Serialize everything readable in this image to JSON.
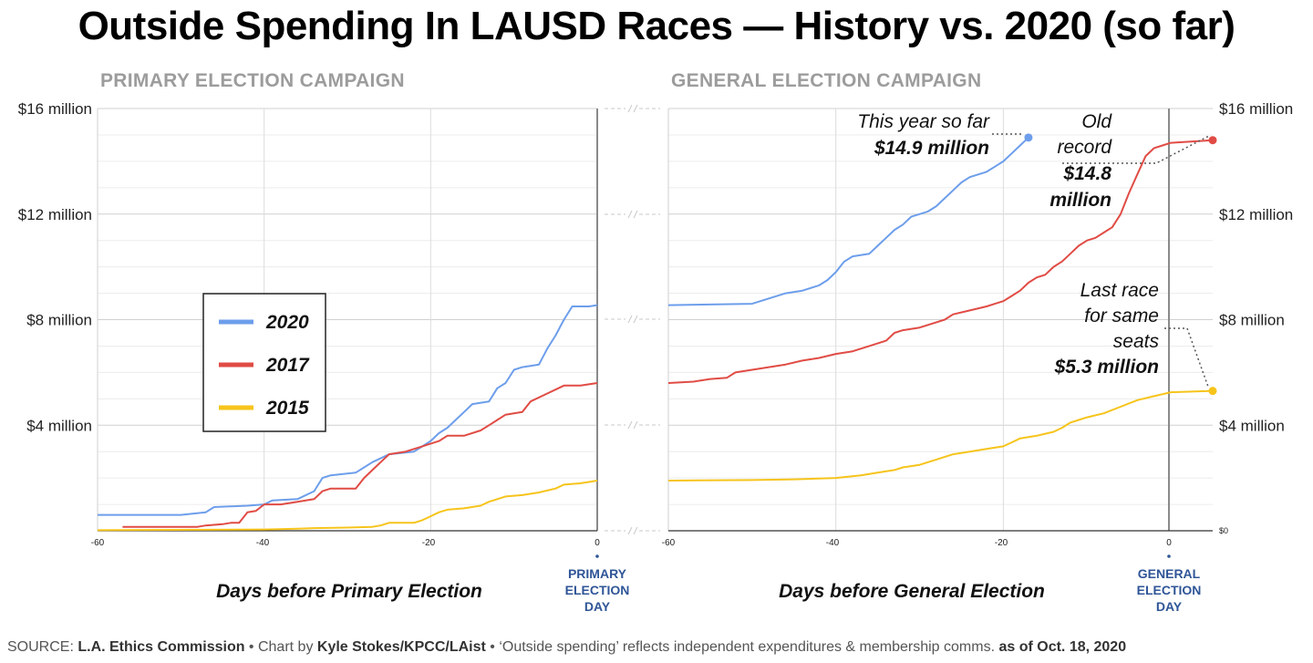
{
  "title": "Outside Spending In LAUSD Races — History vs. 2020 (so far)",
  "colors": {
    "2020": "#6d9eeb",
    "2017": "#e04c45",
    "2015": "#f6c41b",
    "accent_blue": "#2f5597"
  },
  "legend": [
    {
      "name": "2020",
      "color": "#6d9eeb"
    },
    {
      "name": "2017",
      "color": "#e04c45"
    },
    {
      "name": "2015",
      "color": "#f6c41b"
    }
  ],
  "chart_data": [
    {
      "type": "line",
      "title": "PRIMARY ELECTION CAMPAIGN",
      "xlabel": "Days before Primary Election",
      "ylabel": "",
      "xlim": [
        -60,
        0
      ],
      "ylim": [
        0,
        16
      ],
      "x_ticks": [
        "-60",
        "-40",
        "-20",
        "0"
      ],
      "y_ticks": [
        "$16 million",
        "$12 million",
        "$8 million",
        "$4 million"
      ],
      "election_day_label": [
        "PRIMARY",
        "ELECTION",
        "DAY"
      ],
      "series": [
        {
          "name": "2020",
          "color": "#6d9eeb",
          "points": [
            [
              -60,
              0.6
            ],
            [
              -50,
              0.6
            ],
            [
              -47,
              0.7
            ],
            [
              -46,
              0.9
            ],
            [
              -42,
              0.95
            ],
            [
              -40,
              1.0
            ],
            [
              -39,
              1.15
            ],
            [
              -36,
              1.2
            ],
            [
              -34,
              1.5
            ],
            [
              -33,
              2.0
            ],
            [
              -32,
              2.1
            ],
            [
              -29,
              2.2
            ],
            [
              -27,
              2.6
            ],
            [
              -25,
              2.9
            ],
            [
              -22,
              3.0
            ],
            [
              -20,
              3.4
            ],
            [
              -19,
              3.7
            ],
            [
              -18,
              3.9
            ],
            [
              -16,
              4.5
            ],
            [
              -15,
              4.8
            ],
            [
              -13,
              4.9
            ],
            [
              -12,
              5.4
            ],
            [
              -11,
              5.6
            ],
            [
              -10,
              6.1
            ],
            [
              -9,
              6.2
            ],
            [
              -7,
              6.3
            ],
            [
              -6,
              6.9
            ],
            [
              -5,
              7.4
            ],
            [
              -4,
              8.0
            ],
            [
              -3,
              8.5
            ],
            [
              -1,
              8.5
            ],
            [
              0,
              8.55
            ]
          ]
        },
        {
          "name": "2017",
          "color": "#e04c45",
          "points": [
            [
              -57,
              0.15
            ],
            [
              -48,
              0.15
            ],
            [
              -47,
              0.2
            ],
            [
              -45,
              0.25
            ],
            [
              -44,
              0.3
            ],
            [
              -43,
              0.3
            ],
            [
              -42,
              0.7
            ],
            [
              -41,
              0.75
            ],
            [
              -40,
              1.0
            ],
            [
              -38,
              1.0
            ],
            [
              -36,
              1.1
            ],
            [
              -34,
              1.2
            ],
            [
              -33,
              1.5
            ],
            [
              -32,
              1.6
            ],
            [
              -29,
              1.6
            ],
            [
              -28,
              2.0
            ],
            [
              -27,
              2.3
            ],
            [
              -26,
              2.6
            ],
            [
              -25,
              2.9
            ],
            [
              -23,
              3.0
            ],
            [
              -21,
              3.2
            ],
            [
              -19,
              3.4
            ],
            [
              -18,
              3.6
            ],
            [
              -16,
              3.6
            ],
            [
              -14,
              3.8
            ],
            [
              -13,
              4.0
            ],
            [
              -12,
              4.2
            ],
            [
              -11,
              4.4
            ],
            [
              -9,
              4.5
            ],
            [
              -8,
              4.9
            ],
            [
              -6,
              5.2
            ],
            [
              -5,
              5.35
            ],
            [
              -4,
              5.5
            ],
            [
              -2,
              5.5
            ],
            [
              0,
              5.6
            ]
          ]
        },
        {
          "name": "2015",
          "color": "#f6c41b",
          "points": [
            [
              -60,
              0.02
            ],
            [
              -40,
              0.05
            ],
            [
              -36,
              0.08
            ],
            [
              -34,
              0.1
            ],
            [
              -30,
              0.12
            ],
            [
              -27,
              0.15
            ],
            [
              -26,
              0.2
            ],
            [
              -25,
              0.3
            ],
            [
              -22,
              0.3
            ],
            [
              -21,
              0.4
            ],
            [
              -20,
              0.55
            ],
            [
              -19,
              0.7
            ],
            [
              -18,
              0.8
            ],
            [
              -16,
              0.85
            ],
            [
              -14,
              0.95
            ],
            [
              -13,
              1.1
            ],
            [
              -12,
              1.2
            ],
            [
              -11,
              1.3
            ],
            [
              -9,
              1.35
            ],
            [
              -7,
              1.45
            ],
            [
              -5,
              1.6
            ],
            [
              -4,
              1.75
            ],
            [
              -2,
              1.8
            ],
            [
              -1,
              1.85
            ],
            [
              0,
              1.9
            ]
          ]
        }
      ]
    },
    {
      "type": "line",
      "title": "GENERAL ELECTION CAMPAIGN",
      "xlabel": "Days before General Election",
      "ylabel": "",
      "xlim": [
        -60,
        5
      ],
      "ylim": [
        0,
        16
      ],
      "x_ticks": [
        "-60",
        "-40",
        "-20",
        "0"
      ],
      "y_ticks": [
        "$16 million",
        "$12 million",
        "$8 million",
        "$4 million"
      ],
      "y_zero_label": "$0",
      "election_day_label": [
        "GENERAL",
        "ELECTION",
        "DAY"
      ],
      "series": [
        {
          "name": "2020",
          "color": "#6d9eeb",
          "points": [
            [
              -60,
              8.55
            ],
            [
              -50,
              8.6
            ],
            [
              -48,
              8.8
            ],
            [
              -46,
              9.0
            ],
            [
              -44,
              9.1
            ],
            [
              -42,
              9.3
            ],
            [
              -41,
              9.5
            ],
            [
              -40,
              9.8
            ],
            [
              -39,
              10.2
            ],
            [
              -38,
              10.4
            ],
            [
              -36,
              10.5
            ],
            [
              -35,
              10.8
            ],
            [
              -34,
              11.1
            ],
            [
              -33,
              11.4
            ],
            [
              -32,
              11.6
            ],
            [
              -31,
              11.9
            ],
            [
              -30,
              12.0
            ],
            [
              -29,
              12.1
            ],
            [
              -28,
              12.3
            ],
            [
              -27,
              12.6
            ],
            [
              -26,
              12.9
            ],
            [
              -25,
              13.2
            ],
            [
              -24,
              13.4
            ],
            [
              -23,
              13.5
            ],
            [
              -22,
              13.6
            ],
            [
              -21,
              13.8
            ],
            [
              -20,
              14.0
            ],
            [
              -19,
              14.3
            ],
            [
              -18,
              14.6
            ],
            [
              -17,
              14.9
            ]
          ]
        },
        {
          "name": "2017",
          "color": "#e04c45",
          "points": [
            [
              -60,
              5.6
            ],
            [
              -57,
              5.65
            ],
            [
              -55,
              5.75
            ],
            [
              -53,
              5.8
            ],
            [
              -52,
              6.0
            ],
            [
              -50,
              6.1
            ],
            [
              -48,
              6.2
            ],
            [
              -46,
              6.3
            ],
            [
              -44,
              6.45
            ],
            [
              -42,
              6.55
            ],
            [
              -40,
              6.7
            ],
            [
              -38,
              6.8
            ],
            [
              -36,
              7.0
            ],
            [
              -34,
              7.2
            ],
            [
              -33,
              7.5
            ],
            [
              -32,
              7.6
            ],
            [
              -30,
              7.7
            ],
            [
              -29,
              7.8
            ],
            [
              -28,
              7.9
            ],
            [
              -27,
              8.0
            ],
            [
              -26,
              8.2
            ],
            [
              -24,
              8.35
            ],
            [
              -22,
              8.5
            ],
            [
              -21,
              8.6
            ],
            [
              -20,
              8.7
            ],
            [
              -19,
              8.9
            ],
            [
              -18,
              9.1
            ],
            [
              -17,
              9.4
            ],
            [
              -16,
              9.6
            ],
            [
              -15,
              9.7
            ],
            [
              -14,
              10.0
            ],
            [
              -13,
              10.2
            ],
            [
              -12,
              10.5
            ],
            [
              -11,
              10.8
            ],
            [
              -10,
              11.0
            ],
            [
              -9,
              11.1
            ],
            [
              -8,
              11.3
            ],
            [
              -7,
              11.5
            ],
            [
              -6,
              12.0
            ],
            [
              -5,
              12.8
            ],
            [
              -4,
              13.5
            ],
            [
              -3,
              14.2
            ],
            [
              -2,
              14.5
            ],
            [
              -1,
              14.6
            ],
            [
              0,
              14.7
            ],
            [
              5,
              14.8
            ]
          ]
        },
        {
          "name": "2015",
          "color": "#f6c41b",
          "points": [
            [
              -60,
              1.9
            ],
            [
              -50,
              1.92
            ],
            [
              -45,
              1.95
            ],
            [
              -40,
              2.0
            ],
            [
              -37,
              2.1
            ],
            [
              -35,
              2.2
            ],
            [
              -33,
              2.3
            ],
            [
              -32,
              2.4
            ],
            [
              -30,
              2.5
            ],
            [
              -29,
              2.6
            ],
            [
              -28,
              2.7
            ],
            [
              -26,
              2.9
            ],
            [
              -24,
              3.0
            ],
            [
              -22,
              3.1
            ],
            [
              -20,
              3.2
            ],
            [
              -19,
              3.35
            ],
            [
              -18,
              3.5
            ],
            [
              -16,
              3.6
            ],
            [
              -14,
              3.75
            ],
            [
              -13,
              3.9
            ],
            [
              -12,
              4.1
            ],
            [
              -11,
              4.2
            ],
            [
              -10,
              4.3
            ],
            [
              -8,
              4.45
            ],
            [
              -6,
              4.7
            ],
            [
              -4,
              4.95
            ],
            [
              -2,
              5.1
            ],
            [
              0,
              5.25
            ],
            [
              5,
              5.3
            ]
          ]
        }
      ],
      "annotations": [
        {
          "lines": [
            "This year so far"
          ],
          "bold": [
            "$14.9 million"
          ]
        },
        {
          "lines": [
            "Old",
            "record"
          ],
          "bold": [
            "$14.8",
            "million"
          ]
        },
        {
          "lines": [
            "Last race",
            "for same",
            "seats"
          ],
          "bold": [
            "$5.3 million"
          ]
        }
      ]
    }
  ],
  "source": {
    "prefix": "SOURCE: ",
    "org": "L.A. Ethics Commission",
    "sep1": "  •  Chart by ",
    "author": "Kyle Stokes/KPCC/LAist",
    "sep2": "  •  ‘Outside spending’ reflects independent expenditures & membership comms. ",
    "asof": "as of Oct. 18, 2020"
  }
}
